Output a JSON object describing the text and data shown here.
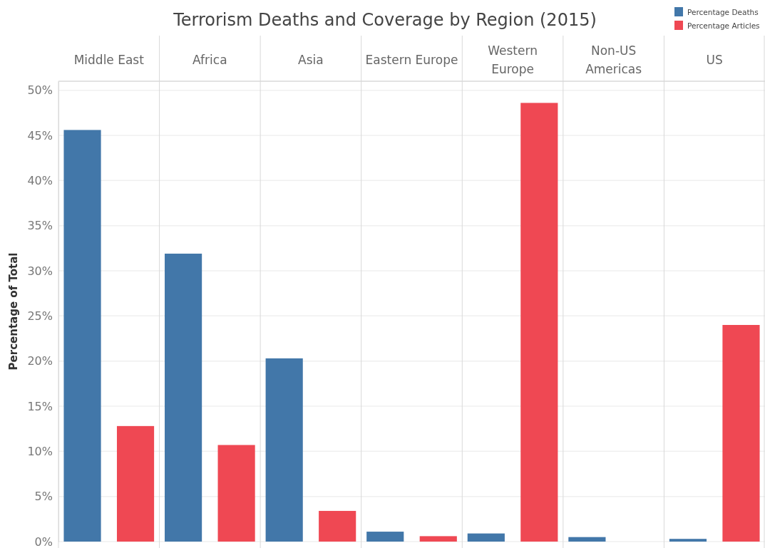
{
  "chart_data": {
    "type": "bar",
    "title": "Terrorism Deaths and Coverage by Region (2015)",
    "ylabel": "Percentage of Total",
    "categories": [
      "Middle East",
      "Africa",
      "Asia",
      "Eastern Europe",
      "Western\nEurope",
      "Non-US\nAmericas",
      "US"
    ],
    "series": [
      {
        "name": "Percentage Deaths",
        "color": "#4277a9",
        "values": [
          45.6,
          31.9,
          20.3,
          1.1,
          0.9,
          0.5,
          0.3
        ]
      },
      {
        "name": "Percentage Articles",
        "color": "#ef4853",
        "values": [
          12.8,
          10.7,
          3.4,
          0.6,
          48.6,
          0,
          24.0
        ]
      }
    ],
    "ylim": [
      0,
      51
    ],
    "yticks": [
      {
        "value": 0,
        "label": "0%"
      },
      {
        "value": 5,
        "label": "5%"
      },
      {
        "value": 10,
        "label": "10%"
      },
      {
        "value": 15,
        "label": "15%"
      },
      {
        "value": 20,
        "label": "20%"
      },
      {
        "value": 25,
        "label": "25%"
      },
      {
        "value": 30,
        "label": "30%"
      },
      {
        "value": 35,
        "label": "35%"
      },
      {
        "value": 40,
        "label": "40%"
      },
      {
        "value": 45,
        "label": "45%"
      },
      {
        "value": 50,
        "label": "50%"
      }
    ],
    "grid": "y",
    "legend": "top right"
  }
}
